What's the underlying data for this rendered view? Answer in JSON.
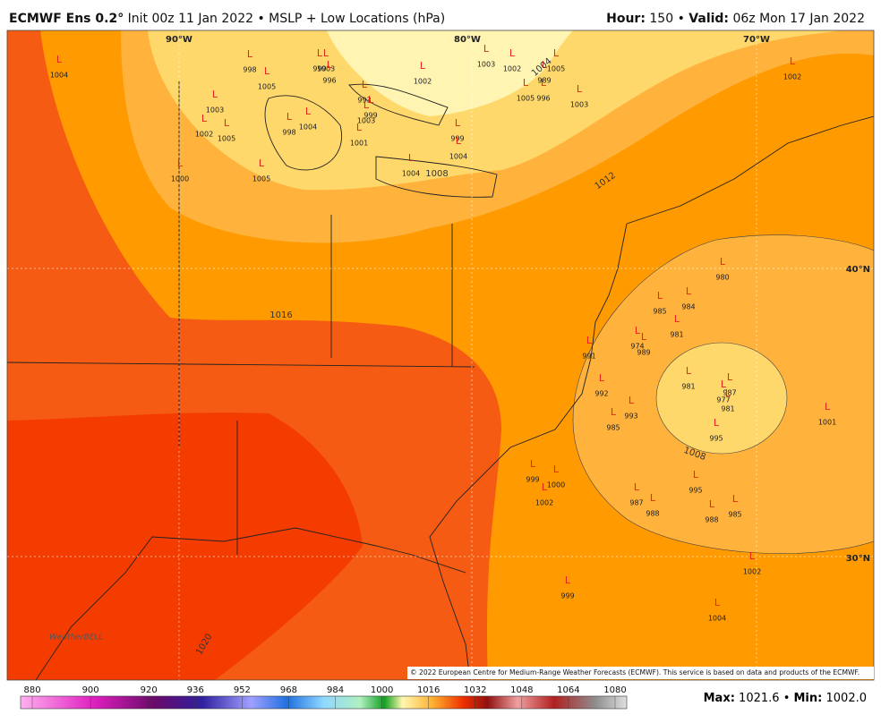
{
  "header": {
    "title": "ECMWF Ens 0.2°",
    "subtitle": "Init 00z 11 Jan 2022 • MSLP + Low Locations (hPa)",
    "hour_label": "Hour:",
    "hour": 150,
    "separator": "•",
    "valid_label": "Valid:",
    "valid": "06z Mon 17 Jan 2022"
  },
  "map": {
    "low_marker": "L",
    "lows": [
      1004,
      998,
      1005,
      999,
      1003,
      996,
      1002,
      1003,
      1002,
      1005,
      989,
      1005,
      996,
      1003,
      1003,
      1002,
      1005,
      998,
      1004,
      993,
      999,
      1003,
      1001,
      999,
      1004,
      1004,
      1000,
      1005,
      1002,
      980,
      985,
      984,
      981,
      974,
      989,
      981,
      977,
      987,
      981,
      991,
      992,
      993,
      985,
      995,
      1001,
      999,
      1000,
      1002,
      995,
      987,
      988,
      988,
      985,
      1002,
      999,
      1004
    ],
    "contour_labels": [
      1004,
      1008,
      1008,
      1012,
      1016,
      1020
    ],
    "lon_labels": [
      "90°W",
      "80°W",
      "70°W"
    ],
    "lat_labels": [
      "40°N",
      "30°N"
    ],
    "copyright": "© 2022 European Centre for Medium-Range Weather Forecasts (ECMWF). This service is based on data and products of the ECMWF.",
    "logo": "WeatherBELL"
  },
  "colorbar": {
    "ticks": [
      880,
      900,
      920,
      936,
      952,
      968,
      984,
      1000,
      1016,
      1032,
      1048,
      1064,
      1080
    ]
  },
  "footer": {
    "max_label": "Max:",
    "max": 1021.6,
    "min_label": "Min:",
    "min": {
      "value": 1002.0,
      "label": "1002.0"
    }
  }
}
